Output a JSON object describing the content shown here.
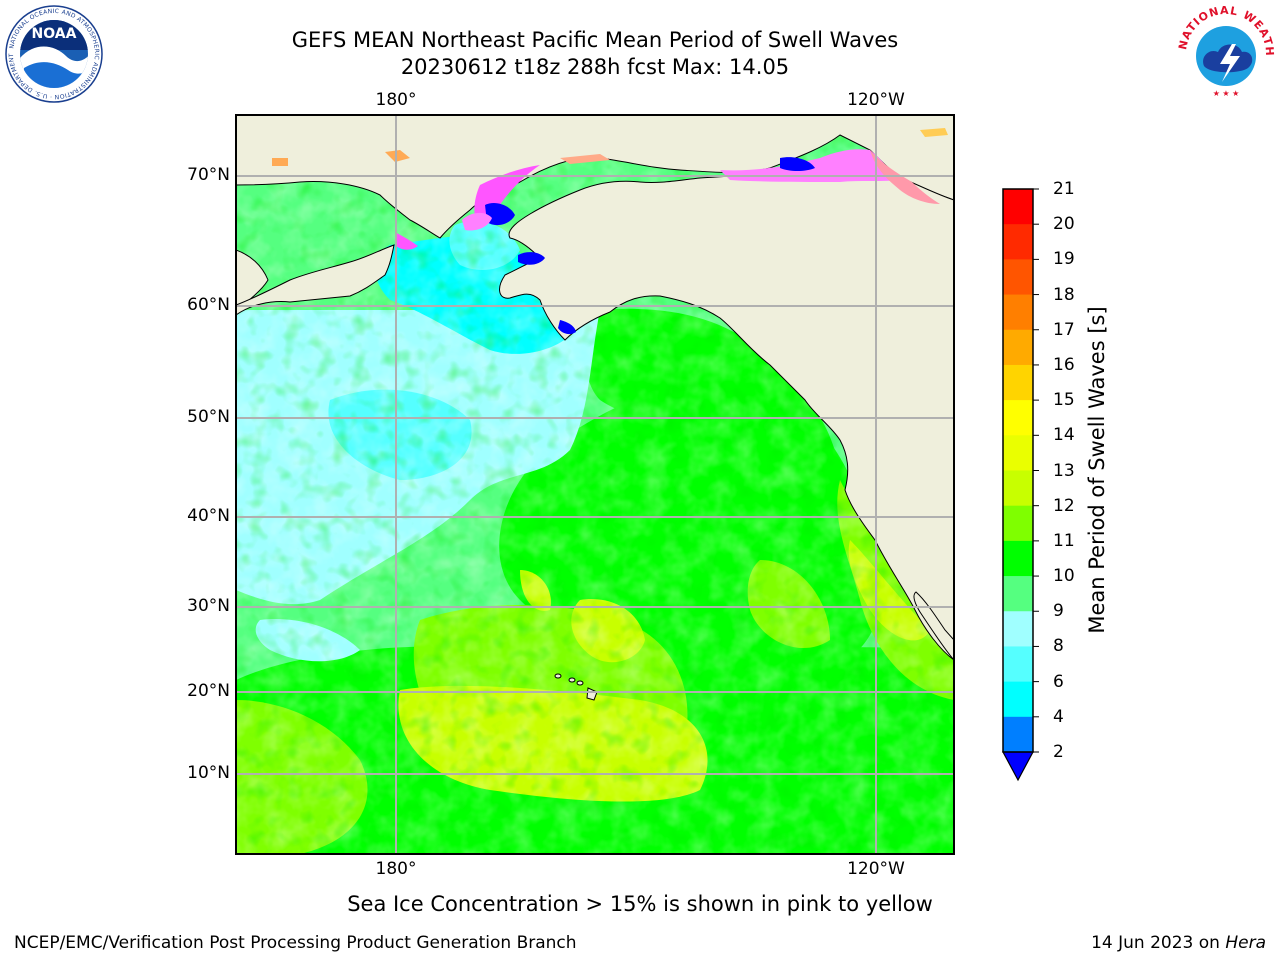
{
  "header": {
    "title_line1": "GEFS MEAN Northeast Pacific Mean Period of Swell Waves",
    "title_line2": "20230612 t18z 288h fcst   Max: 14.05"
  },
  "logos": {
    "left": {
      "name": "NOAA",
      "ring_text": "NATIONAL OCEANIC AND ATMOSPHERIC ADMINISTRATION · U.S. DEPARTMENT OF COMMERCE"
    },
    "right": {
      "name": "NATIONAL WEATHER SERVICE"
    }
  },
  "map": {
    "lon_labels": [
      "180°",
      "120°W"
    ],
    "lat_labels": [
      "70°N",
      "60°N",
      "50°N",
      "40°N",
      "30°N",
      "20°N",
      "10°N"
    ],
    "land_color": "#efefdc",
    "grid_color": "#b0b0b0",
    "max_value": 14.05
  },
  "colorbar": {
    "label": "Mean Period of Swell Waves [s]",
    "ticks": [
      "21",
      "20",
      "19",
      "18",
      "17",
      "16",
      "15",
      "14",
      "13",
      "12",
      "11",
      "10",
      "9",
      "8",
      "6",
      "4",
      "2"
    ],
    "colors_top_to_bottom": [
      "#ff0000",
      "#ff2a00",
      "#ff5500",
      "#ff7f00",
      "#ffaa00",
      "#ffd400",
      "#ffff00",
      "#eaff00",
      "#c8ff00",
      "#7fff00",
      "#00ff00",
      "#55ff80",
      "#a0ffff",
      "#55ffff",
      "#00ffff",
      "#007fff"
    ],
    "under_color": "#0000ff"
  },
  "footer": {
    "caption": "Sea Ice Concentration > 15% is shown in pink to yellow",
    "credit": "NCEP/EMC/Verification Post Processing Product Generation Branch",
    "date": "14 Jun 2023 on",
    "host": "Hera"
  }
}
